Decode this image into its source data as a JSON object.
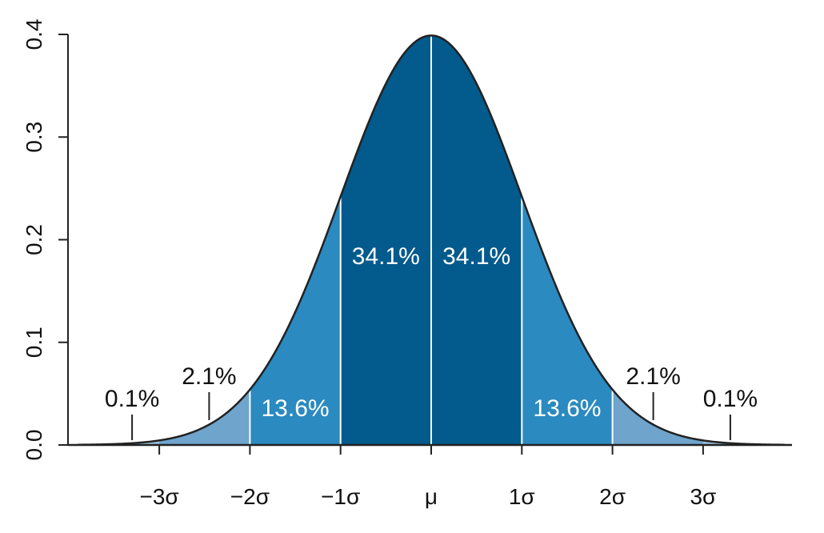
{
  "chart_data": {
    "type": "area",
    "title": "",
    "xlabel": "",
    "ylabel": "",
    "distribution": "standard normal density",
    "mean": 0,
    "sd": 1,
    "xlim": [
      -3.9,
      3.9
    ],
    "ylim": [
      0,
      0.4
    ],
    "x_ticks": [
      -3,
      -2,
      -1,
      0,
      1,
      2,
      3
    ],
    "x_tick_labels": [
      "−3σ",
      "−2σ",
      "−1σ",
      "μ",
      "1σ",
      "2σ",
      "3σ"
    ],
    "y_ticks": [
      0.0,
      0.1,
      0.2,
      0.3,
      0.4
    ],
    "y_tick_labels": [
      "0.0",
      "0.1",
      "0.2",
      "0.3",
      "0.4"
    ],
    "grid": false,
    "bands": [
      {
        "from": -3,
        "to": -2,
        "percent": "2.1%",
        "color": "#6fa4cc"
      },
      {
        "from": -2,
        "to": -1,
        "percent": "13.6%",
        "color": "#2b8ac0"
      },
      {
        "from": -1,
        "to": 0,
        "percent": "34.1%",
        "color": "#035a8c"
      },
      {
        "from": 0,
        "to": 1,
        "percent": "34.1%",
        "color": "#035a8c"
      },
      {
        "from": 1,
        "to": 2,
        "percent": "13.6%",
        "color": "#2b8ac0"
      },
      {
        "from": 2,
        "to": 3,
        "percent": "2.1%",
        "color": "#6fa4cc"
      }
    ],
    "tail_color": "#9cc0db",
    "curve_color": "#222222",
    "band_divider_color": "#ffffff",
    "annotations": [
      {
        "text": "0.1%",
        "x": -3.3,
        "placement": "above-pointer"
      },
      {
        "text": "2.1%",
        "x": -2.45,
        "placement": "above-pointer"
      },
      {
        "text": "13.6%",
        "x": -1.5,
        "placement": "inside"
      },
      {
        "text": "34.1%",
        "x": -0.5,
        "placement": "inside"
      },
      {
        "text": "34.1%",
        "x": 0.5,
        "placement": "inside"
      },
      {
        "text": "13.6%",
        "x": 1.5,
        "placement": "inside"
      },
      {
        "text": "2.1%",
        "x": 2.45,
        "placement": "above-pointer"
      },
      {
        "text": "0.1%",
        "x": 3.3,
        "placement": "above-pointer"
      }
    ]
  }
}
